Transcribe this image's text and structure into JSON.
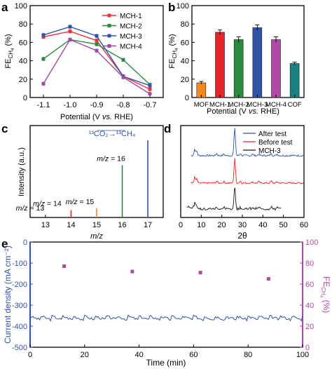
{
  "chart_data": [
    {
      "panel": "a",
      "type": "line",
      "ylabel_main": "FE",
      "ylabel_sub": "CH",
      "ylabel_sub2": "4",
      "ylabel_unit": " (%)",
      "xlabel_prefix": "Potential (V ",
      "xlabel_italic": "vs.",
      "xlabel_suffix": " RHE)",
      "x": [
        -1.1,
        -1.0,
        -0.9,
        -0.8,
        -0.7
      ],
      "xticks": [
        "-1.1",
        "-1.0",
        "-0.9",
        "-0.8",
        "-0.7"
      ],
      "xlim": [
        -1.15,
        -0.65
      ],
      "ylim": [
        0,
        100
      ],
      "yticks": [
        "0",
        "20",
        "40",
        "60",
        "80",
        "100"
      ],
      "legend_position": "top-right",
      "series": [
        {
          "name": "MCH-1",
          "color": "#e8313a",
          "values": [
            66,
            72,
            62,
            23,
            9
          ]
        },
        {
          "name": "MCH-2",
          "color": "#2a8a3e",
          "values": [
            42,
            63,
            58,
            41,
            14
          ]
        },
        {
          "name": "MCH-3",
          "color": "#3153a6",
          "values": [
            68,
            77,
            67,
            23,
            13
          ]
        },
        {
          "name": "MCH-4",
          "color": "#a04aa6",
          "values": [
            15,
            63,
            51,
            22,
            4
          ]
        }
      ]
    },
    {
      "panel": "b",
      "type": "bar",
      "ylabel_main": "FE",
      "ylabel_sub": "CH",
      "ylabel_sub2": "4",
      "ylabel_unit": " (%)",
      "xlabel_prefix": "Potential (V ",
      "xlabel_italic": "vs.",
      "xlabel_suffix": " RHE)",
      "categories": [
        "MOF",
        "MCH-1",
        "MCH-2",
        "MCH-3",
        "MCH-4",
        "COF"
      ],
      "values": [
        16,
        71,
        63,
        76,
        63,
        37
      ],
      "errors": [
        1.5,
        2.5,
        3,
        3,
        3,
        1.5
      ],
      "colors": [
        "#f28a1e",
        "#e8232a",
        "#2a8a3e",
        "#3153a6",
        "#b04aa6",
        "#1a8080"
      ],
      "ylim": [
        0,
        100
      ],
      "yticks": [
        "0",
        "20",
        "40",
        "60",
        "80",
        "100"
      ]
    },
    {
      "panel": "c",
      "type": "bar",
      "ylabel": "Intensity (a.u.)",
      "xlabel": "m/z",
      "xticks": [
        "13",
        "14",
        "15",
        "16",
        "17"
      ],
      "xlim": [
        12.4,
        17.6
      ],
      "reaction_label": "¹³CO₂→¹³CH₄",
      "peaks": [
        {
          "x": 13,
          "height": 0.0,
          "color": "#000000",
          "label": "m/z = 13"
        },
        {
          "x": 14,
          "height": 0.08,
          "color": "#e8232a",
          "label": "m/z = 14"
        },
        {
          "x": 15,
          "height": 0.1,
          "color": "#f28a1e",
          "label": "m/z = 15"
        },
        {
          "x": 16,
          "height": 0.57,
          "color": "#2a8a3e",
          "label": "m/z = 16"
        },
        {
          "x": 17,
          "height": 0.84,
          "color": "#3153a6",
          "label": ""
        }
      ]
    },
    {
      "panel": "d",
      "type": "line",
      "xlabel": "2θ",
      "xticks": [
        "0",
        "10",
        "20",
        "30",
        "40",
        "50",
        "60"
      ],
      "xlim": [
        0,
        60
      ],
      "legend_position": "top-right",
      "series": [
        {
          "name": "After test",
          "color": "#3153a6"
        },
        {
          "name": "Before test",
          "color": "#e8232a"
        },
        {
          "name": "MCH-3",
          "color": "#1a1a1a"
        }
      ]
    },
    {
      "panel": "e",
      "type": "scatter",
      "xlabel": "Time (min)",
      "xticks": [
        "0",
        "20",
        "40",
        "60",
        "80",
        "100"
      ],
      "xlim": [
        0,
        100
      ],
      "left_ylabel": "Current density (mA cm⁻²)",
      "left_ylim": [
        -500,
        0
      ],
      "left_yticks": [
        "0",
        "-100",
        "-200",
        "-300",
        "-400",
        "-500"
      ],
      "right_ylabel_main": "FE",
      "right_ylabel_sub": "CH",
      "right_ylabel_sub2": "4",
      "right_ylabel_unit": " (%)",
      "right_ylim": [
        0,
        100
      ],
      "right_yticks": [
        "0",
        "20",
        "40",
        "60",
        "80",
        "100"
      ],
      "current_color": "#3153a6",
      "fe_color": "#b04aa6",
      "current_mean": -365,
      "fe_points": {
        "x": [
          12.5,
          37.5,
          62.5,
          87.5
        ],
        "y": [
          77,
          72,
          71,
          65
        ]
      }
    }
  ],
  "panel_letters": [
    "a",
    "b",
    "c",
    "d",
    "e"
  ]
}
